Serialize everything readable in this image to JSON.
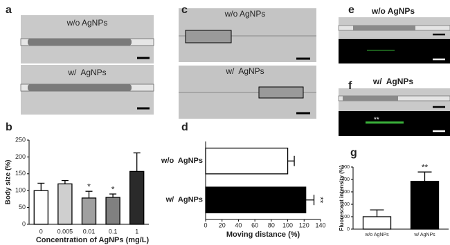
{
  "figure": {
    "panel_labels": [
      "a",
      "b",
      "c",
      "d",
      "e",
      "f",
      "g"
    ],
    "image_labels": [
      "w/o AgNPs",
      "w/  AgNPs",
      "w/o AgNPs",
      "w/  AgNPs",
      "w/o AgNPs",
      "w/  AgNPs"
    ],
    "image_mark": "**"
  },
  "chart_data": [
    {
      "type": "bar",
      "orientation": "vertical",
      "ylabel": "Body size (%)",
      "xlabel": "Concentration of AgNPs (mg/L)",
      "categories": [
        "0",
        "0.005",
        "0.01",
        "0.1",
        "1"
      ],
      "values": [
        100,
        120,
        78,
        80,
        157
      ],
      "errors": [
        22,
        10,
        20,
        10,
        55
      ],
      "colors": [
        "#ffffff",
        "#cfcfcf",
        "#a0a0a0",
        "#808080",
        "#2a2a2a"
      ],
      "annotations": [
        null,
        null,
        "*",
        "*",
        null
      ],
      "ylim": [
        0,
        250
      ],
      "yticks": [
        0,
        50,
        100,
        150,
        200,
        250
      ]
    },
    {
      "type": "bar",
      "orientation": "horizontal",
      "xlabel": "Moving distance (%)",
      "categories": [
        "w/o  AgNPs",
        "w/  AgNPs"
      ],
      "values": [
        100,
        122
      ],
      "errors": [
        8,
        10
      ],
      "colors": [
        "#ffffff",
        "#000000"
      ],
      "annotations": [
        null,
        "**"
      ],
      "xlim": [
        0,
        140
      ],
      "xticks": [
        0,
        20,
        40,
        60,
        80,
        100,
        120,
        140
      ]
    },
    {
      "type": "bar",
      "orientation": "vertical",
      "ylabel": "Fluorescent intensity (%)",
      "categories": [
        "w/o AgNPs",
        "w/ AgNPs"
      ],
      "values": [
        100,
        385
      ],
      "errors": [
        55,
        75
      ],
      "colors": [
        "#ffffff",
        "#000000"
      ],
      "annotations": [
        null,
        "**"
      ],
      "ylim": [
        0,
        500
      ],
      "yticks": [
        0,
        100,
        200,
        300,
        400,
        500
      ]
    }
  ]
}
